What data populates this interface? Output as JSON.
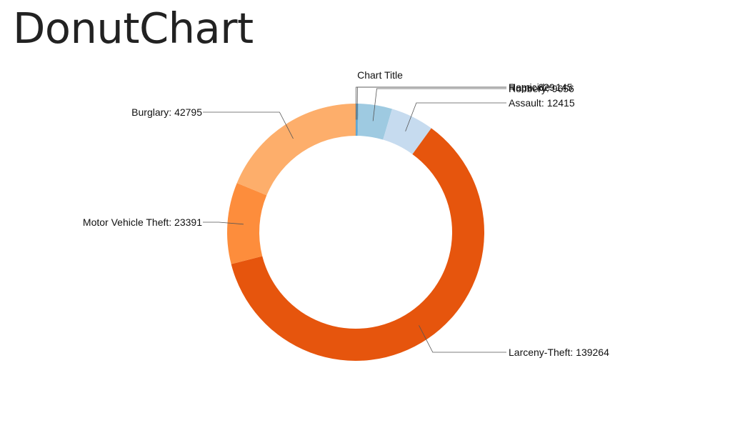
{
  "page": {
    "heading": "DonutChart"
  },
  "chart_data": {
    "type": "pie",
    "variant": "donut",
    "title": "Chart Title",
    "slices": [
      {
        "label": "Homicide",
        "value": 145,
        "color": "#3182bd"
      },
      {
        "label": "Rape",
        "value": 629,
        "color": "#6baed6"
      },
      {
        "label": "Robbery",
        "value": 9656,
        "color": "#9ecae1"
      },
      {
        "label": "Assault",
        "value": 12415,
        "color": "#c6dbef"
      },
      {
        "label": "Larceny-Theft",
        "value": 139264,
        "color": "#e6550d"
      },
      {
        "label": "Motor Vehicle Theft",
        "value": 23391,
        "color": "#fd8d3c"
      },
      {
        "label": "Burglary",
        "value": 42795,
        "color": "#fdae6b"
      }
    ],
    "label_format": "{label}: {value}",
    "legend": "none"
  }
}
